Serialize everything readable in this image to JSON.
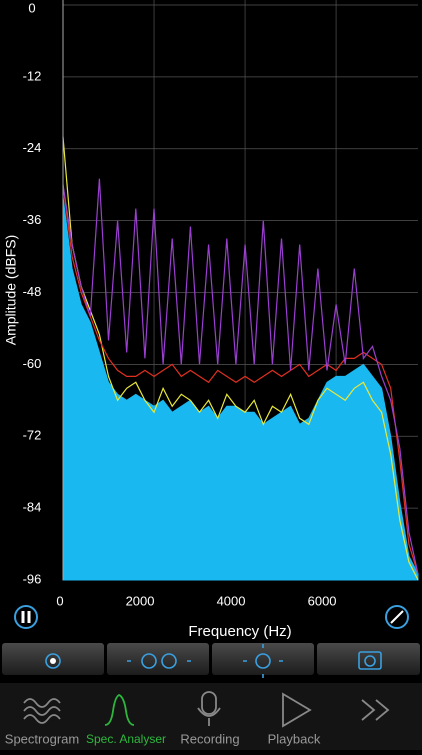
{
  "chart_data": {
    "type": "spectrum",
    "ylabel": "Amplitude (dBFS)",
    "xlabel": "Frequency (Hz)",
    "ylim": [
      -96,
      0
    ],
    "yticks": [
      0,
      -12,
      -24,
      -36,
      -48,
      -60,
      -72,
      -84,
      -96
    ],
    "xlim": [
      0,
      7800
    ],
    "xticks": [
      0,
      2000,
      4000,
      6000
    ],
    "grid": true,
    "x": [
      0,
      200,
      400,
      600,
      800,
      1000,
      1200,
      1400,
      1600,
      1800,
      2000,
      2200,
      2400,
      2600,
      2800,
      3000,
      3200,
      3400,
      3600,
      3800,
      4000,
      4200,
      4400,
      4600,
      4800,
      5000,
      5200,
      5400,
      5600,
      5800,
      6000,
      6200,
      6400,
      6600,
      6800,
      7000,
      7200,
      7400,
      7600,
      7800
    ],
    "series": [
      {
        "color": "#1ab8f0",
        "fill": true,
        "values": [
          -32,
          -44,
          -50,
          -53,
          -58,
          -63,
          -65,
          -66,
          -65,
          -66,
          -67,
          -66,
          -68,
          -67,
          -66,
          -68,
          -67,
          -69,
          -67,
          -67,
          -68,
          -68,
          -70,
          -69,
          -68,
          -67,
          -70,
          -69,
          -66,
          -63,
          -62,
          -62,
          -61,
          -60,
          -62,
          -64,
          -72,
          -83,
          -92,
          -95
        ]
      },
      {
        "color": "#e8e83a",
        "fill": false,
        "values": [
          -22,
          -40,
          -47,
          -51,
          -55,
          -62,
          -66,
          -64,
          -63,
          -66,
          -68,
          -64,
          -67,
          -65,
          -66,
          -68,
          -66,
          -69,
          -65,
          -67,
          -68,
          -66,
          -70,
          -67,
          -68,
          -65,
          -69,
          -70,
          -66,
          -64,
          -65,
          -66,
          -64,
          -63,
          -66,
          -68,
          -75,
          -86,
          -93,
          -96
        ]
      },
      {
        "color": "#e03020",
        "fill": false,
        "values": [
          -30,
          -42,
          -48,
          -52,
          -56,
          -59,
          -61,
          -62,
          -62,
          -61,
          -62,
          -61,
          -60,
          -62,
          -61,
          -62,
          -63,
          -61,
          -62,
          -63,
          -62,
          -63,
          -62,
          -61,
          -62,
          -61,
          -60,
          -62,
          -61,
          -60,
          -61,
          -59,
          -59,
          -58,
          -59,
          -60,
          -64,
          -76,
          -90,
          -95
        ]
      },
      {
        "color": "#9a3fd0",
        "fill": false,
        "values": [
          -30,
          -40,
          -47,
          -52,
          -29,
          -56,
          -36,
          -58,
          -34,
          -59,
          -34,
          -60,
          -39,
          -60,
          -37,
          -60,
          -40,
          -60,
          -39,
          -60,
          -40,
          -60,
          -36,
          -60,
          -39,
          -61,
          -40,
          -61,
          -44,
          -61,
          -50,
          -60,
          -44,
          -59,
          -57,
          -62,
          -66,
          -74,
          -88,
          -95
        ]
      }
    ]
  },
  "toolbar": {
    "buttons": 4
  },
  "tabs": [
    "Spectrogram",
    "Spec. Analyser",
    "Recording",
    "Playback"
  ]
}
